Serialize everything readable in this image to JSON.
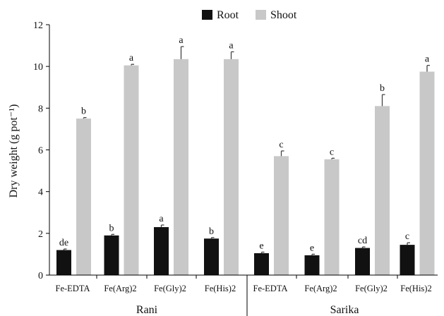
{
  "chart_data": {
    "type": "bar",
    "title": "",
    "xlabel": "",
    "ylabel": "Dry weight (g pot⁻¹)",
    "ylim": [
      0,
      12
    ],
    "yticks": [
      0,
      2,
      4,
      6,
      8,
      10,
      12
    ],
    "grid": false,
    "legend_position": "top-center",
    "categories": [
      "Fe-EDTA",
      "Fe(Arg)2",
      "Fe(Gly)2",
      "Fe(His)2",
      "Fe-EDTA",
      "Fe(Arg)2",
      "Fe(Gly)2",
      "Fe(His)2"
    ],
    "groups": [
      {
        "label": "Rani",
        "categories": [
          0,
          1,
          2,
          3
        ]
      },
      {
        "label": "Sarika",
        "categories": [
          4,
          5,
          6,
          7
        ]
      }
    ],
    "series": [
      {
        "name": "Root",
        "color": "#111111",
        "values": [
          1.2,
          1.9,
          2.3,
          1.75,
          1.05,
          0.95,
          1.3,
          1.45
        ],
        "errors": [
          0.05,
          0.05,
          0.1,
          0.05,
          0.05,
          0.05,
          0.05,
          0.1
        ],
        "labels": [
          "de",
          "b",
          "a",
          "b",
          "e",
          "e",
          "cd",
          "c"
        ]
      },
      {
        "name": "Shoot",
        "color": "#c8c8c8",
        "values": [
          7.5,
          10.05,
          10.35,
          10.35,
          5.7,
          5.55,
          8.1,
          9.75
        ],
        "errors": [
          0.05,
          0.05,
          0.6,
          0.35,
          0.25,
          0.05,
          0.55,
          0.3
        ],
        "labels": [
          "b",
          "a",
          "a",
          "a",
          "c",
          "c",
          "b",
          "a"
        ]
      }
    ]
  }
}
